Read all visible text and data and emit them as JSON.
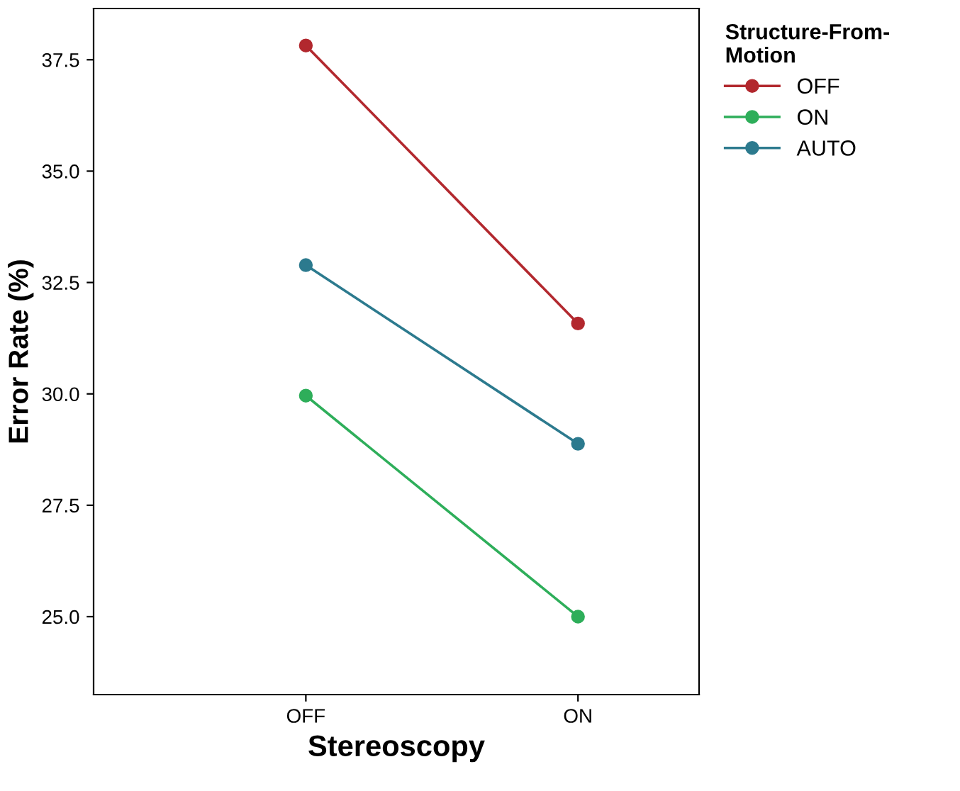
{
  "chart_data": {
    "type": "line",
    "xlabel": "Stereoscopy",
    "ylabel": "Error Rate (%)",
    "legend_title": "Structure-From-\nMotion",
    "categories": [
      "OFF",
      "ON"
    ],
    "series": [
      {
        "name": "OFF",
        "color": "#b2282e",
        "values": [
          37.82,
          31.58
        ]
      },
      {
        "name": "ON",
        "color": "#2eae5a",
        "values": [
          29.96,
          25.0
        ]
      },
      {
        "name": "AUTO",
        "color": "#2c7a8e",
        "values": [
          32.89,
          28.88
        ]
      }
    ],
    "ylim": [
      23.25,
      38.65
    ],
    "yticks": [
      {
        "value": 25,
        "label": "25.0"
      },
      {
        "value": 27.5,
        "label": "27.5"
      },
      {
        "value": 30,
        "label": "30.0"
      },
      {
        "value": 32.5,
        "label": "32.5"
      },
      {
        "value": 35,
        "label": "35.0"
      },
      {
        "value": 37.5,
        "label": "37.5"
      }
    ],
    "marker": "circle",
    "line_style": "solid",
    "grid": false,
    "legend": "top right"
  }
}
